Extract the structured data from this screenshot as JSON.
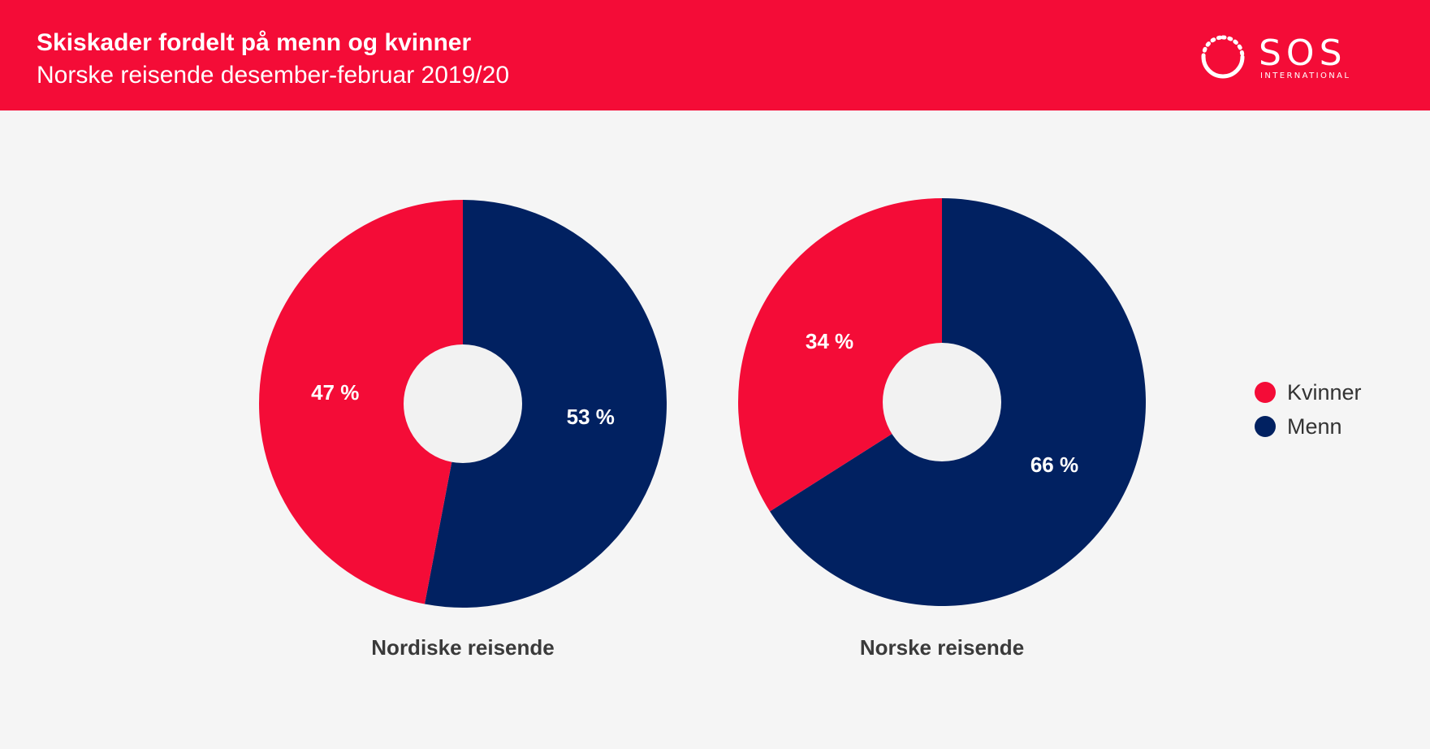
{
  "header": {
    "title": "Skiskader fordelt på menn og kvinner",
    "subtitle": "Norske reisende desember-februar 2019/20",
    "logo_text": "SOS",
    "logo_subtext": "INTERNATIONAL",
    "background_color": "#f40c37"
  },
  "legend": {
    "items": [
      {
        "label": "Kvinner",
        "color": "#f40c37"
      },
      {
        "label": "Menn",
        "color": "#012161"
      }
    ]
  },
  "chart_data": [
    {
      "type": "pie",
      "title": "Nordiske reisende",
      "labels": [
        "Kvinner",
        "Menn"
      ],
      "values": [
        47,
        53
      ],
      "value_labels": [
        "47 %",
        "53 %"
      ],
      "colors": [
        "#f40c37",
        "#012161"
      ],
      "donut": true,
      "legend_position": "right"
    },
    {
      "type": "pie",
      "title": "Norske reisende",
      "labels": [
        "Kvinner",
        "Menn"
      ],
      "values": [
        34,
        66
      ],
      "value_labels": [
        "34 %",
        "66 %"
      ],
      "colors": [
        "#f40c37",
        "#012161"
      ],
      "donut": true,
      "legend_position": "right"
    }
  ]
}
